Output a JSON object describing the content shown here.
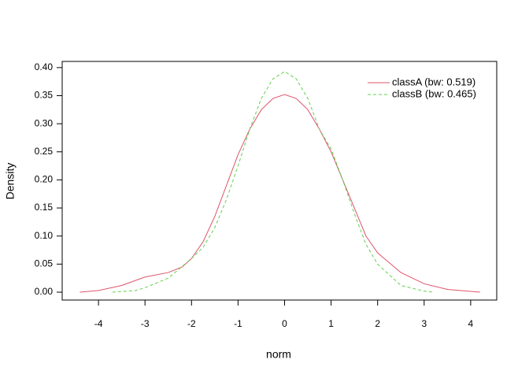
{
  "chart_data": {
    "type": "line",
    "xlabel": "norm",
    "ylabel": "Density",
    "xlim": [
      -4.78,
      4.56
    ],
    "ylim": [
      -0.014,
      0.411
    ],
    "xticks": [
      -4,
      -3,
      -2,
      -1,
      0,
      1,
      2,
      3,
      4
    ],
    "yticks": [
      {
        "value": 0,
        "label": "0.00"
      },
      0.05,
      {
        "value": 0.1,
        "label": "0.10"
      },
      0.15,
      {
        "value": 0.2,
        "label": "0.20"
      },
      0.25,
      {
        "value": 0.3,
        "label": "0.30"
      },
      0.35,
      {
        "value": 0.4,
        "label": "0.40"
      }
    ],
    "legend": "top-right",
    "series": [
      {
        "name": "classA (bw: 0.519)",
        "color": "#DF536B",
        "dash": "solid",
        "x": [
          -4.4,
          -4,
          -3.5,
          -3,
          -2.5,
          -2.2,
          -2,
          -1.75,
          -1.5,
          -1.25,
          -1,
          -0.75,
          -0.5,
          -0.25,
          0,
          0.25,
          0.5,
          0.75,
          1,
          1.25,
          1.5,
          1.75,
          2,
          2.5,
          3,
          3.5,
          4.2
        ],
        "values": [
          0,
          0.003,
          0.012,
          0.027,
          0.035,
          0.045,
          0.06,
          0.09,
          0.135,
          0.19,
          0.245,
          0.29,
          0.325,
          0.345,
          0.352,
          0.345,
          0.325,
          0.29,
          0.25,
          0.2,
          0.15,
          0.1,
          0.07,
          0.035,
          0.015,
          0.005,
          0
        ]
      },
      {
        "name": "classB (bw: 0.465)",
        "color": "#61D04F",
        "dash": "dashed",
        "x": [
          -3.7,
          -3.2,
          -3,
          -2.5,
          -2,
          -1.75,
          -1.5,
          -1.25,
          -1,
          -0.75,
          -0.5,
          -0.25,
          0,
          0.25,
          0.5,
          0.75,
          1,
          1.25,
          1.5,
          1.75,
          2,
          2.5,
          3,
          3.2
        ],
        "values": [
          0,
          0.003,
          0.008,
          0.025,
          0.06,
          0.08,
          0.115,
          0.165,
          0.225,
          0.29,
          0.345,
          0.38,
          0.393,
          0.38,
          0.345,
          0.29,
          0.255,
          0.2,
          0.14,
          0.085,
          0.05,
          0.012,
          0.002,
          0
        ]
      }
    ]
  }
}
